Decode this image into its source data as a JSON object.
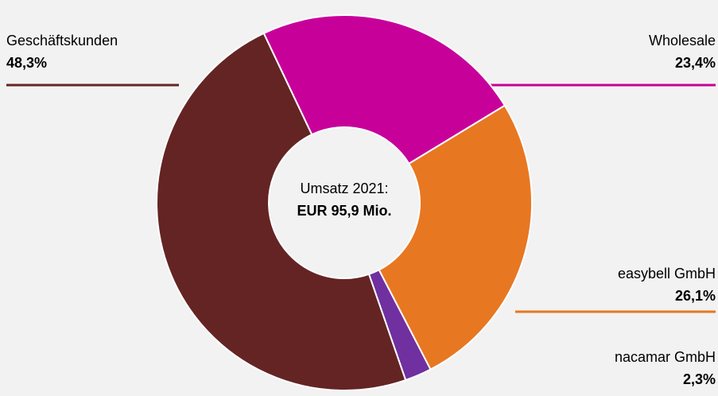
{
  "chart_data": {
    "type": "donut",
    "annotations": [
      "Umsatz 2021:",
      "EUR 95,9 Mio."
    ],
    "categories": [
      "Wholesale",
      "easybell GmbH",
      "nacamar GmbH",
      "Geschäftskunden"
    ],
    "values": [
      23.4,
      26.1,
      2.3,
      48.3
    ],
    "value_labels": [
      "23,4%",
      "26,1%",
      "2,3%",
      "48,3%"
    ],
    "colors": [
      "#c8009a",
      "#e87722",
      "#7030a0",
      "#642424"
    ]
  }
}
